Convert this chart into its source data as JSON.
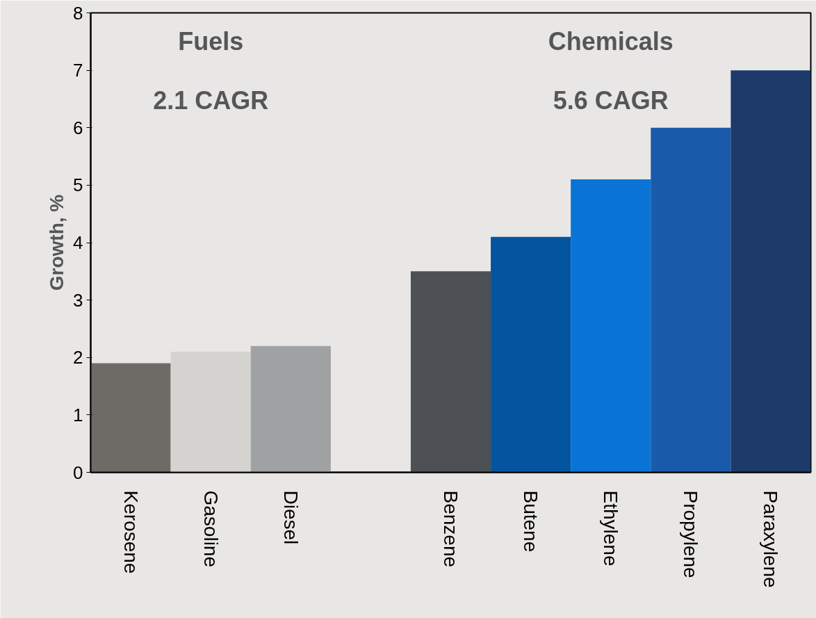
{
  "chart_data": {
    "type": "bar",
    "ylabel": "Growth, %",
    "categories": [
      "Kerosene",
      "Gasoline",
      "Diesel",
      null,
      "Benzene",
      "Butene",
      "Ethylene",
      "Propylene",
      "Paraxylene"
    ],
    "values": [
      1.9,
      2.1,
      2.2,
      null,
      3.5,
      4.1,
      5.1,
      6.0,
      7.0
    ],
    "colors": [
      "#6e6a65",
      "#d4d3d0",
      "#a0a1a3",
      "#e8e7e5",
      "#4d5055",
      "#0455a0",
      "#0a74d6",
      "#1a5aaa",
      "#1e3a6a"
    ],
    "ylim": [
      0,
      8
    ],
    "yticks": [
      0,
      1,
      2,
      3,
      4,
      5,
      6,
      7,
      8
    ],
    "grid": false,
    "annotations": [
      "Fuels",
      "2.1 CAGR",
      "Chemicals",
      "5.6 CAGR"
    ]
  }
}
